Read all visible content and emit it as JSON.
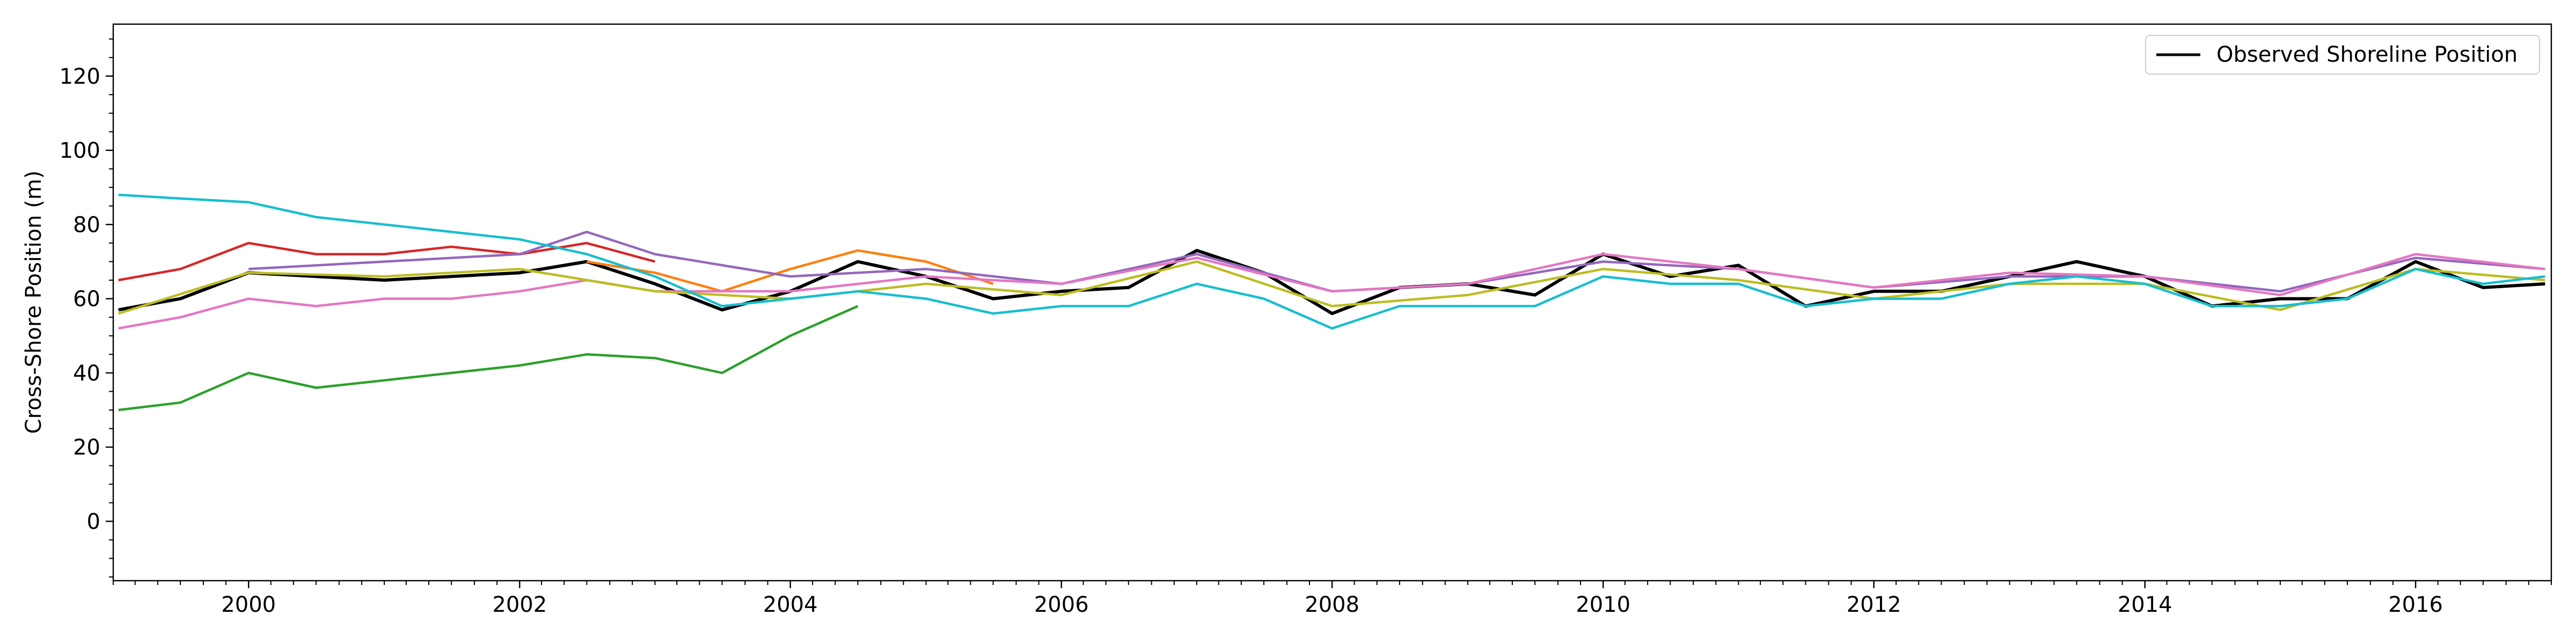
{
  "chart_data": {
    "type": "line",
    "title": "",
    "xlabel": "",
    "ylabel": "Cross-Shore Position (m)",
    "xlim": [
      "1999-01-01",
      "2017-01-01"
    ],
    "ylim": [
      -16,
      134
    ],
    "x_ticks": [
      "2000",
      "2002",
      "2004",
      "2006",
      "2008",
      "2010",
      "2012",
      "2014",
      "2016"
    ],
    "y_ticks": [
      0,
      20,
      40,
      60,
      80,
      100,
      120
    ],
    "grid": false,
    "legend": {
      "position": "top-right",
      "entries": [
        "Observed Shoreline Position"
      ]
    },
    "series": [
      {
        "name": "Observed Shoreline Position",
        "color": "#000000",
        "x": [
          "1999-01-15",
          "1999-07-01",
          "2000-01-01",
          "2000-07-01",
          "2001-01-01",
          "2001-07-01",
          "2002-01-01",
          "2002-07-01",
          "2003-01-01",
          "2003-07-01",
          "2004-01-01",
          "2004-07-01",
          "2005-01-01",
          "2005-07-01",
          "2006-01-01",
          "2006-07-01",
          "2007-01-01",
          "2007-07-01",
          "2008-01-01",
          "2008-07-01",
          "2009-01-01",
          "2009-07-01",
          "2010-01-01",
          "2010-07-01",
          "2011-01-01",
          "2011-07-01",
          "2012-01-01",
          "2012-07-01",
          "2013-01-01",
          "2013-07-01",
          "2014-01-01",
          "2014-07-01",
          "2015-01-01",
          "2015-07-01",
          "2016-01-01",
          "2016-07-01",
          "2016-12-15"
        ],
        "values": [
          57,
          60,
          67,
          66,
          65,
          66,
          67,
          70,
          64,
          57,
          62,
          70,
          66,
          60,
          62,
          63,
          73,
          67,
          56,
          63,
          64,
          61,
          72,
          66,
          69,
          58,
          62,
          62,
          66,
          70,
          66,
          58,
          60,
          60,
          70,
          63,
          64
        ]
      },
      {
        "color": "#ff7f0e",
        "x": [
          "2002-07-01",
          "2003-01-01",
          "2003-07-01",
          "2004-01-01",
          "2004-07-01",
          "2005-01-01",
          "2005-07-01"
        ],
        "values": [
          70,
          67,
          62,
          68,
          73,
          70,
          64
        ]
      },
      {
        "color": "#2ca02c",
        "x": [
          "1999-01-15",
          "1999-07-01",
          "2000-01-01",
          "2000-07-01",
          "2001-01-01",
          "2001-07-01",
          "2002-01-01",
          "2002-07-01",
          "2003-01-01",
          "2003-07-01",
          "2004-01-01",
          "2004-07-01"
        ],
        "values": [
          30,
          32,
          40,
          36,
          38,
          40,
          42,
          45,
          44,
          40,
          50,
          58
        ]
      },
      {
        "color": "#d62728",
        "x": [
          "1999-01-15",
          "1999-07-01",
          "2000-01-01",
          "2000-07-01",
          "2001-01-01",
          "2001-07-01",
          "2002-01-01",
          "2002-07-01",
          "2003-01-01"
        ],
        "values": [
          65,
          68,
          75,
          72,
          72,
          74,
          72,
          75,
          70
        ]
      },
      {
        "color": "#9467bd",
        "x": [
          "2000-01-01",
          "2001-01-01",
          "2002-01-01",
          "2002-07-01",
          "2003-01-01",
          "2004-01-01",
          "2005-01-01",
          "2006-01-01",
          "2007-01-01",
          "2008-01-01",
          "2009-01-01",
          "2010-01-01",
          "2011-01-01",
          "2012-01-01",
          "2013-01-01",
          "2014-01-01",
          "2015-01-01",
          "2016-01-01",
          "2016-12-15"
        ],
        "values": [
          68,
          70,
          72,
          78,
          72,
          66,
          68,
          64,
          72,
          62,
          64,
          70,
          68,
          63,
          66,
          66,
          62,
          71,
          68
        ]
      },
      {
        "color": "#e377c2",
        "x": [
          "1999-01-15",
          "1999-07-01",
          "2000-01-01",
          "2000-07-01",
          "2001-01-01",
          "2001-07-01",
          "2002-01-01",
          "2002-07-01",
          "2003-01-01",
          "2004-01-01",
          "2005-01-01",
          "2006-01-01",
          "2007-01-01",
          "2008-01-01",
          "2009-01-01",
          "2010-01-01",
          "2011-01-01",
          "2012-01-01",
          "2013-01-01",
          "2014-01-01",
          "2015-01-01",
          "2016-01-01",
          "2016-12-15"
        ],
        "values": [
          52,
          55,
          60,
          58,
          60,
          60,
          62,
          65,
          62,
          62,
          66,
          64,
          71,
          62,
          64,
          72,
          68,
          63,
          67,
          66,
          61,
          72,
          68
        ]
      },
      {
        "color": "#bcbd22",
        "x": [
          "1999-01-15",
          "2000-01-01",
          "2001-01-01",
          "2002-01-01",
          "2003-01-01",
          "2004-01-01",
          "2005-01-01",
          "2006-01-01",
          "2007-01-01",
          "2008-01-01",
          "2009-01-01",
          "2010-01-01",
          "2011-01-01",
          "2012-01-01",
          "2013-01-01",
          "2014-01-01",
          "2015-01-01",
          "2016-01-01",
          "2016-12-15"
        ],
        "values": [
          56,
          67,
          66,
          68,
          62,
          60,
          64,
          61,
          70,
          58,
          61,
          68,
          65,
          60,
          64,
          64,
          57,
          68,
          65
        ]
      },
      {
        "color": "#17becf",
        "x": [
          "1999-01-15",
          "1999-07-01",
          "2000-01-01",
          "2000-07-01",
          "2001-01-01",
          "2001-07-01",
          "2002-01-01",
          "2002-07-01",
          "2003-01-01",
          "2003-07-01",
          "2004-01-01",
          "2004-07-01",
          "2005-01-01",
          "2005-07-01",
          "2006-01-01",
          "2006-07-01",
          "2007-01-01",
          "2007-07-01",
          "2008-01-01",
          "2008-07-01",
          "2009-01-01",
          "2009-07-01",
          "2010-01-01",
          "2010-07-01",
          "2011-01-01",
          "2011-07-01",
          "2012-01-01",
          "2012-07-01",
          "2013-01-01",
          "2013-07-01",
          "2014-01-01",
          "2014-07-01",
          "2015-01-01",
          "2015-07-01",
          "2016-01-01",
          "2016-07-01",
          "2016-12-15"
        ],
        "values": [
          88,
          87,
          86,
          82,
          80,
          78,
          76,
          72,
          66,
          58,
          60,
          62,
          60,
          56,
          58,
          58,
          64,
          60,
          52,
          58,
          58,
          58,
          66,
          64,
          64,
          58,
          60,
          60,
          64,
          66,
          64,
          58,
          58,
          60,
          68,
          64,
          66
        ]
      }
    ]
  }
}
